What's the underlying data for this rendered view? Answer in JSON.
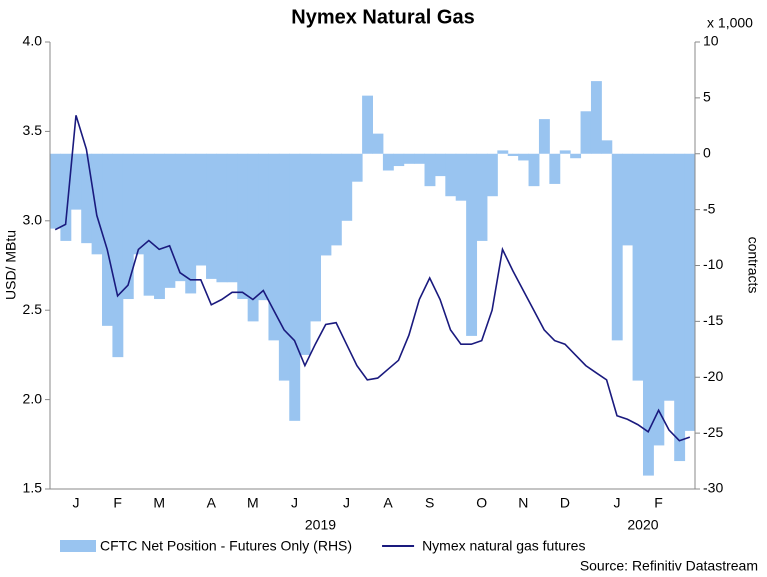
{
  "chart_data": {
    "type": "area-line",
    "title": "Nymex Natural Gas",
    "ylabel": "USD/ MBtu",
    "y2label": "contracts",
    "y2_unit_label": "x 1,000",
    "source": "Source: Refinitiv Datastream",
    "categories": [
      null,
      null,
      "J",
      null,
      null,
      null,
      "F",
      null,
      null,
      null,
      "M",
      null,
      null,
      null,
      null,
      "A",
      null,
      null,
      null,
      "M",
      null,
      null,
      null,
      "J",
      null,
      null,
      null,
      null,
      "J",
      null,
      null,
      null,
      "A",
      null,
      null,
      null,
      "S",
      null,
      null,
      null,
      null,
      "O",
      null,
      null,
      null,
      "N",
      null,
      null,
      null,
      "D",
      null,
      null,
      null,
      null,
      "J",
      null,
      null,
      null,
      "F",
      null,
      null,
      null
    ],
    "x_groups": [
      {
        "label": "2019",
        "from": 0,
        "to": 51
      },
      {
        "label": "2020",
        "from": 52,
        "to": 61
      }
    ],
    "series": [
      {
        "name": "CFTC Net Position - Futures Only (RHS)",
        "color": "#99c4f0",
        "axis": "y2",
        "style": "area",
        "values": [
          -6.7,
          -7.8,
          -5,
          -8,
          -9,
          -15.4,
          -18.2,
          -13,
          -9,
          -12.7,
          -13,
          -12,
          -11.4,
          -12.5,
          -10,
          -11.2,
          -11.5,
          -11.5,
          -13,
          -15,
          -13.1,
          -16.7,
          -20.3,
          -23.9,
          -18,
          -15,
          -9.1,
          -8.2,
          -6,
          -2.5,
          5.2,
          1.8,
          -1.5,
          -1.1,
          -0.9,
          -0.9,
          -2.9,
          -2,
          -3.8,
          -4.2,
          -16.3,
          -7.8,
          -3.8,
          0.3,
          -0.2,
          -0.6,
          -2.9,
          3.1,
          -2.7,
          0.3,
          -0.4,
          3.8,
          6.5,
          1.2,
          -16.7,
          -8.2,
          -20.3,
          -28.8,
          -26.1,
          -22.1,
          -27.5,
          -24.8
        ]
      },
      {
        "name": "Nymex natural gas futures",
        "color": "#1a1a7e",
        "axis": "y",
        "style": "line",
        "values": [
          2.95,
          2.98,
          3.59,
          3.4,
          3.03,
          2.84,
          2.58,
          2.64,
          2.84,
          2.89,
          2.84,
          2.86,
          2.71,
          2.67,
          2.67,
          2.53,
          2.56,
          2.6,
          2.6,
          2.56,
          2.61,
          2.5,
          2.39,
          2.33,
          2.19,
          2.31,
          2.42,
          2.43,
          2.31,
          2.19,
          2.11,
          2.12,
          2.17,
          2.22,
          2.36,
          2.56,
          2.68,
          2.56,
          2.39,
          2.31,
          2.31,
          2.33,
          2.5,
          2.84,
          2.72,
          2.61,
          2.5,
          2.39,
          2.33,
          2.31,
          2.25,
          2.19,
          2.15,
          2.11,
          1.91,
          1.89,
          1.86,
          1.82,
          1.94,
          1.83,
          1.77,
          1.79
        ]
      }
    ],
    "ylim": [
      1.5,
      4.0
    ],
    "yticks": [
      1.5,
      {
        "value": 2,
        "label": "2.0"
      },
      2.5,
      {
        "value": 3,
        "label": "3.0"
      },
      3.5,
      {
        "value": 4,
        "label": "4.0"
      }
    ],
    "y2lim": [
      -30,
      10
    ],
    "y2ticks": [
      -30,
      -25,
      -20,
      -15,
      -10,
      -5,
      0,
      5,
      10
    ],
    "grid": false,
    "legend": "bottom"
  }
}
